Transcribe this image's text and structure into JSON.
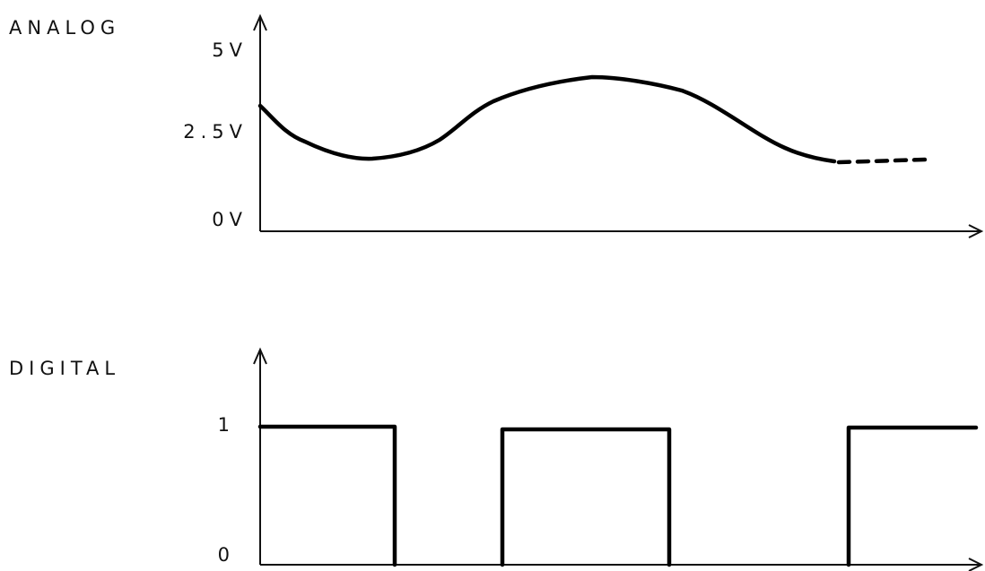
{
  "analog": {
    "title": "ANALOG",
    "levels": [
      "5V",
      "2.5V",
      "0V"
    ]
  },
  "digital": {
    "title": "DIGITAL",
    "levels": [
      "1",
      "0"
    ]
  }
}
